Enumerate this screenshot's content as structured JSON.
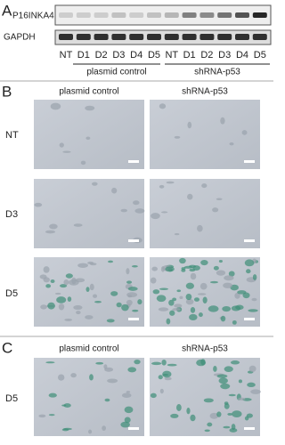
{
  "panel_a": {
    "letter": "A",
    "blot_labels": [
      "P16INKA4",
      "GAPDH"
    ],
    "lanes": [
      "NT",
      "D1",
      "D2",
      "D3",
      "D4",
      "D5",
      "NT",
      "D1",
      "D2",
      "D3",
      "D4",
      "D5"
    ],
    "groups": [
      "plasmid control",
      "shRNA-p53"
    ]
  },
  "panel_b": {
    "letter": "B",
    "columns": [
      "plasmid control",
      "shRNA-p53"
    ],
    "rows": [
      "NT",
      "D3",
      "D5"
    ]
  },
  "panel_c": {
    "letter": "C",
    "columns": [
      "plasmid control",
      "shRNA-p53"
    ],
    "rows": [
      "D5"
    ]
  }
}
